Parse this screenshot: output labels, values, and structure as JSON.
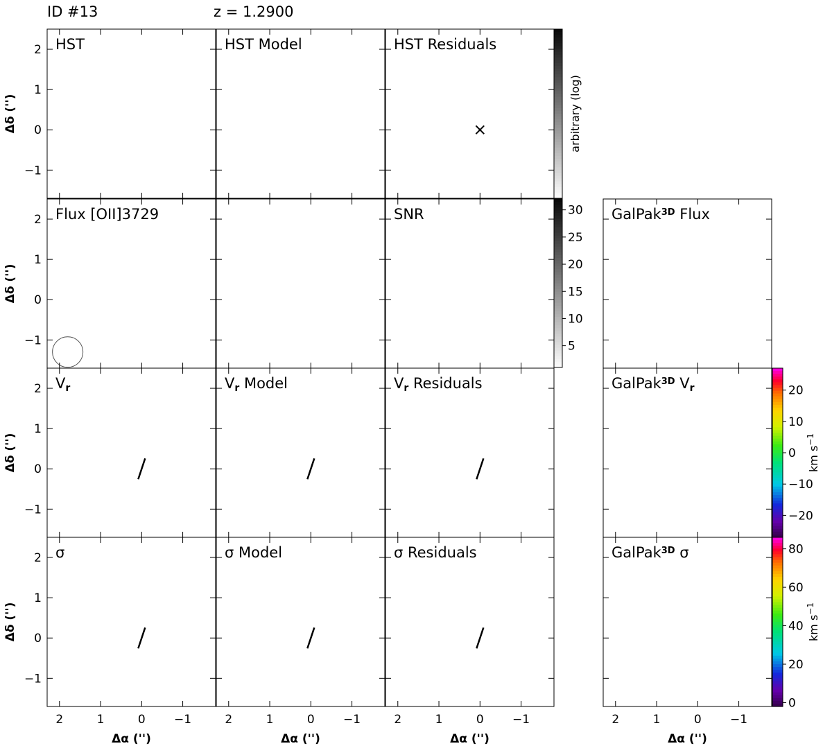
{
  "header": {
    "id_label": "ID #13",
    "redshift_label": "z = 1.2900"
  },
  "chart_data": {
    "type": "heatmap",
    "xlabel": "Δα ('')",
    "ylabel": "Δδ ('')",
    "xlim": [
      2.3,
      -1.8
    ],
    "ylim": [
      -1.7,
      2.5
    ],
    "xticks": [
      "2",
      "1",
      "0",
      "−1"
    ],
    "yticks": [
      "−1",
      "0",
      "1",
      "2"
    ],
    "panels": [
      {
        "id": "hst",
        "row": 0,
        "col": 0,
        "title": "HST",
        "kind": "hst"
      },
      {
        "id": "hst_model",
        "row": 0,
        "col": 1,
        "title": "HST Model",
        "kind": "hstmodel"
      },
      {
        "id": "hst_res",
        "row": 0,
        "col": 2,
        "title": "HST Residuals",
        "kind": "hstres"
      },
      {
        "id": "flux",
        "row": 1,
        "col": 0,
        "title": "Flux [OII]3729",
        "kind": "flux"
      },
      {
        "id": "empty",
        "row": 1,
        "col": 1,
        "title": "",
        "kind": "empty"
      },
      {
        "id": "snr",
        "row": 1,
        "col": 2,
        "title": "SNR",
        "kind": "snr"
      },
      {
        "id": "gp_flux",
        "row": 1,
        "col": 3,
        "title": "GalPak",
        "sup": "3D",
        "title2": " Flux",
        "kind": "gpflux"
      },
      {
        "id": "vr",
        "row": 2,
        "col": 0,
        "title": "V",
        "sub": "r",
        "kind": "vr"
      },
      {
        "id": "vr_model",
        "row": 2,
        "col": 1,
        "title": "V",
        "sub": "r",
        "title2": " Model",
        "kind": "vrmodel"
      },
      {
        "id": "vr_res",
        "row": 2,
        "col": 2,
        "title": "V",
        "sub": "r",
        "title2": " Residuals",
        "kind": "vrres"
      },
      {
        "id": "gp_vr",
        "row": 2,
        "col": 3,
        "title": "GalPak",
        "sup": "3D",
        "title2": " V",
        "sub2": "r",
        "kind": "gpvr"
      },
      {
        "id": "sigma",
        "row": 3,
        "col": 0,
        "title": "σ",
        "kind": "sig"
      },
      {
        "id": "sigma_model",
        "row": 3,
        "col": 1,
        "title": "σ Model",
        "kind": "sigmodel"
      },
      {
        "id": "sigma_res",
        "row": 3,
        "col": 2,
        "title": "σ Residuals",
        "kind": "sigres"
      },
      {
        "id": "gp_sigma",
        "row": 3,
        "col": 3,
        "title": "GalPak",
        "sup": "3D",
        "title2": " σ",
        "kind": "gpsig"
      }
    ],
    "colorbars": [
      {
        "id": "cb_hst",
        "label": "arbitrary (log)",
        "ticks": [],
        "scale": "gray"
      },
      {
        "id": "cb_snr",
        "label": "",
        "ticks": [
          "30",
          "25",
          "20",
          "15",
          "10",
          "5"
        ],
        "range": [
          1,
          32
        ],
        "scale": "gray"
      },
      {
        "id": "cb_vr",
        "label": "km s",
        "label_sup": "−1",
        "ticks": [
          "20",
          "10",
          "0",
          "−10",
          "−20"
        ],
        "range": [
          -27,
          27
        ],
        "scale": "rainbow"
      },
      {
        "id": "cb_sigma",
        "label": "km s",
        "label_sup": "−1",
        "ticks": [
          "80",
          "60",
          "40",
          "20",
          "0"
        ],
        "range": [
          -2,
          86
        ],
        "scale": "rainbow"
      }
    ]
  }
}
